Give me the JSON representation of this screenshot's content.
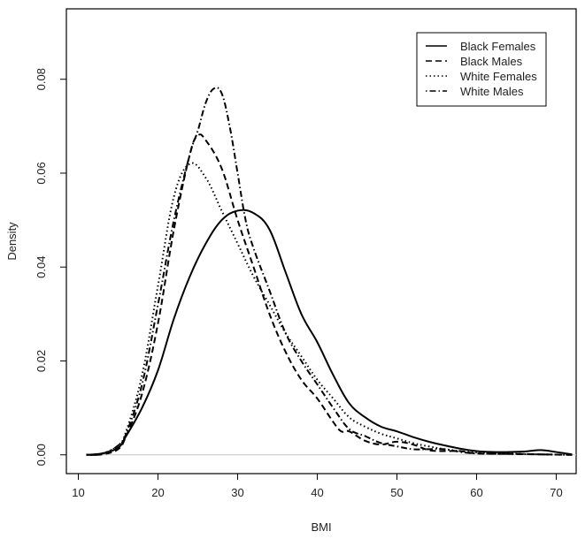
{
  "chart_data": {
    "type": "line",
    "title": "",
    "xlabel": "BMI",
    "ylabel": "Density",
    "xlim": [
      8.5,
      72.5
    ],
    "ylim": [
      -0.004,
      0.095
    ],
    "xticks": [
      10,
      20,
      30,
      40,
      50,
      60,
      70
    ],
    "yticks": [
      0.0,
      0.02,
      0.04,
      0.06,
      0.08
    ],
    "ytick_labels": [
      "0.00",
      "0.02",
      "0.04",
      "0.06",
      "0.08"
    ],
    "grid": false,
    "baseline": 0,
    "legend": {
      "position": "top-right"
    },
    "series": [
      {
        "name": "Black Females",
        "line_style": "solid",
        "color": "#000000",
        "x": [
          11,
          13,
          15,
          16,
          18,
          20,
          22,
          24,
          26,
          28,
          30,
          32,
          34,
          36,
          38,
          40,
          42,
          44,
          46,
          48,
          50,
          52,
          54,
          56,
          58,
          60,
          62,
          64,
          66,
          68,
          70,
          72
        ],
        "y": [
          0.0,
          0.0003,
          0.0015,
          0.004,
          0.01,
          0.018,
          0.029,
          0.038,
          0.045,
          0.05,
          0.052,
          0.0515,
          0.048,
          0.039,
          0.03,
          0.024,
          0.017,
          0.011,
          0.008,
          0.006,
          0.005,
          0.0038,
          0.0028,
          0.002,
          0.0013,
          0.0008,
          0.0006,
          0.0006,
          0.0007,
          0.001,
          0.0006,
          0.0001
        ]
      },
      {
        "name": "Black Males",
        "line_style": "dashed",
        "color": "#000000",
        "x": [
          11,
          13,
          15,
          16,
          18,
          20,
          22,
          24,
          25,
          26,
          28,
          30,
          32,
          34,
          36,
          38,
          40,
          42,
          43,
          44,
          46,
          48,
          50,
          52,
          54,
          56,
          58,
          60,
          64,
          68,
          72
        ],
        "y": [
          0.0,
          0.0001,
          0.0012,
          0.004,
          0.013,
          0.028,
          0.048,
          0.064,
          0.068,
          0.067,
          0.061,
          0.05,
          0.04,
          0.03,
          0.022,
          0.016,
          0.012,
          0.007,
          0.005,
          0.005,
          0.003,
          0.0022,
          0.0028,
          0.0022,
          0.001,
          0.0008,
          0.0008,
          0.0003,
          0.0002,
          0.0001,
          0.0
        ]
      },
      {
        "name": "White Females",
        "line_style": "dotted",
        "color": "#000000",
        "x": [
          11,
          13,
          15,
          16,
          18,
          20,
          22,
          24,
          26,
          28,
          30,
          32,
          34,
          36,
          38,
          40,
          42,
          44,
          46,
          48,
          50,
          52,
          54,
          56,
          58,
          60,
          64,
          68,
          72
        ],
        "y": [
          0.0,
          0.0003,
          0.002,
          0.005,
          0.017,
          0.036,
          0.055,
          0.062,
          0.059,
          0.052,
          0.045,
          0.038,
          0.032,
          0.026,
          0.021,
          0.016,
          0.012,
          0.008,
          0.006,
          0.0045,
          0.0035,
          0.0025,
          0.0018,
          0.0012,
          0.0008,
          0.0005,
          0.0003,
          0.0001,
          0.0
        ]
      },
      {
        "name": "White Males",
        "line_style": "dotdash",
        "color": "#000000",
        "x": [
          11,
          13,
          15,
          16,
          18,
          20,
          22,
          24,
          25,
          26,
          27,
          28,
          29,
          30,
          31,
          32,
          34,
          36,
          38,
          40,
          42,
          44,
          46,
          48,
          50,
          52,
          54,
          56,
          58,
          60,
          64,
          68,
          72
        ],
        "y": [
          0.0,
          0.0002,
          0.002,
          0.0045,
          0.015,
          0.032,
          0.05,
          0.064,
          0.069,
          0.075,
          0.078,
          0.077,
          0.07,
          0.06,
          0.05,
          0.044,
          0.035,
          0.026,
          0.02,
          0.015,
          0.01,
          0.0055,
          0.004,
          0.0025,
          0.0018,
          0.0012,
          0.0012,
          0.0012,
          0.0006,
          0.0003,
          0.0002,
          0.0001,
          0.0
        ]
      }
    ]
  }
}
